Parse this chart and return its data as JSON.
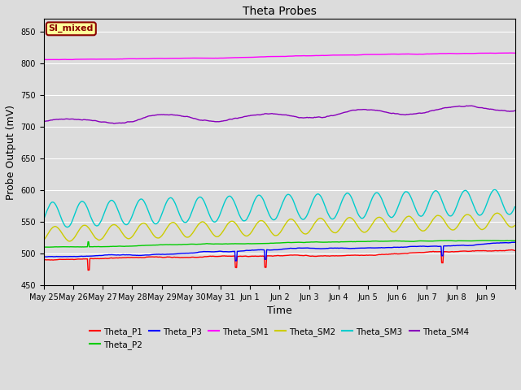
{
  "title": "Theta Probes",
  "xlabel": "Time",
  "ylabel": "Probe Output (mV)",
  "ylim": [
    450,
    870
  ],
  "yticks": [
    450,
    500,
    550,
    600,
    650,
    700,
    750,
    800,
    850
  ],
  "background_color": "#dcdcdc",
  "annotation_text": "SI_mixed",
  "annotation_bg": "#ffff99",
  "annotation_border": "#8B0000",
  "annotation_text_color": "#8B0000",
  "colors": {
    "Theta_P1": "#ff0000",
    "Theta_P2": "#00cc00",
    "Theta_P3": "#0000ff",
    "Theta_SM1": "#ff00ff",
    "Theta_SM2": "#cccc00",
    "Theta_SM3": "#00cccc",
    "Theta_SM4": "#8800bb"
  },
  "xtick_labels": [
    "May 25",
    "May 26",
    "May 27",
    "May 28",
    "May 29",
    "May 30",
    "May 31",
    "Jun 1",
    "Jun 2",
    "Jun 3",
    "Jun 4",
    "Jun 5",
    "Jun 6",
    "Jun 7",
    "Jun 8",
    "Jun 9"
  ],
  "legend_order": [
    "Theta_P1",
    "Theta_P2",
    "Theta_P3",
    "Theta_SM1",
    "Theta_SM2",
    "Theta_SM3",
    "Theta_SM4"
  ]
}
